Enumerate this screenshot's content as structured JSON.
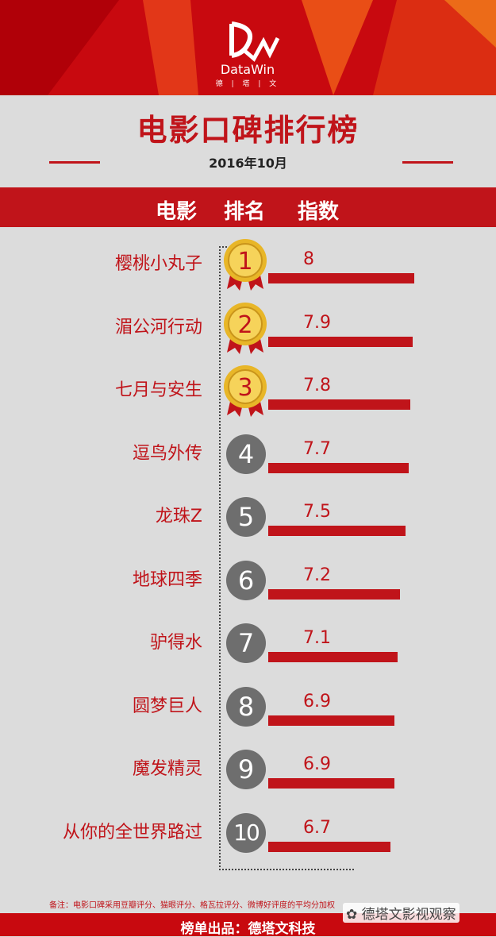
{
  "brand": {
    "name": "DataWin",
    "sub": "德 | 塔 | 文"
  },
  "title": "电影口碑排行榜",
  "date": "2016年10月",
  "columns": {
    "movie": "电影",
    "rank": "排名",
    "score": "指数"
  },
  "colors": {
    "accent": "#c0141a",
    "header": "#c8090f",
    "background": "#dcdcdc",
    "rank_circle": "#6e6e6e",
    "gold": "#e8b628"
  },
  "chart_data": {
    "type": "bar",
    "title": "电影口碑排行榜",
    "subtitle": "2016年10月",
    "xlabel": "",
    "ylabel": "指数",
    "categories": [
      "樱桃小丸子",
      "湄公河行动",
      "七月与安生",
      "逗鸟外传",
      "龙珠Z",
      "地球四季",
      "驴得水",
      "圆梦巨人",
      "魔发精灵",
      "从你的全世界路过"
    ],
    "ranks": [
      "1",
      "2",
      "3",
      "4",
      "5",
      "6",
      "7",
      "8",
      "9",
      "10"
    ],
    "values": [
      8,
      7.9,
      7.8,
      7.7,
      7.5,
      7.2,
      7.1,
      6.9,
      6.9,
      6.7
    ],
    "value_labels": [
      "8",
      "7.9",
      "7.8",
      "7.7",
      "7.5",
      "7.2",
      "7.1",
      "6.9",
      "6.9",
      "6.7"
    ],
    "xlim": [
      0,
      8
    ]
  },
  "note": "备注：电影口碑采用豆瓣评分、猫眼评分、格瓦拉评分、微博好评度的平均分加权",
  "footer": "榜单出品：德塔文科技",
  "watermark": "德塔文影视观察"
}
